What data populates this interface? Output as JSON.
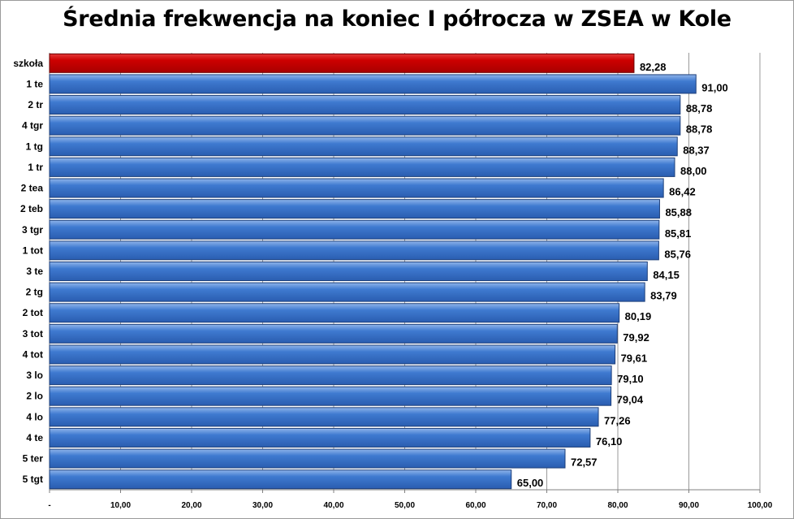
{
  "chart_data": {
    "type": "bar",
    "orientation": "horizontal",
    "title": "Średnia frekwencja na koniec I półrocza w ZSEA w Kole",
    "categories": [
      "szkoła",
      "1 te",
      "2 tr",
      "4 tgr",
      "1 tg",
      "1 tr",
      "2 tea",
      "2 teb",
      "3 tgr",
      "1 tot",
      "3 te",
      "2 tg",
      "2 tot",
      "3 tot",
      "4 tot",
      "3 lo",
      "2 lo",
      "4 lo",
      "4 te",
      "5 ter",
      "5 tgt"
    ],
    "values": [
      82.28,
      91.0,
      88.78,
      88.78,
      88.37,
      88.0,
      86.42,
      85.88,
      85.81,
      85.76,
      84.15,
      83.79,
      80.19,
      79.92,
      79.61,
      79.1,
      79.04,
      77.26,
      76.1,
      72.57,
      65.0
    ],
    "value_labels": [
      "82,28",
      "91,00",
      "88,78",
      "88,78",
      "88,37",
      "88,00",
      "86,42",
      "85,88",
      "85,81",
      "85,76",
      "84,15",
      "83,79",
      "80,19",
      "79,92",
      "79,61",
      "79,10",
      "79,04",
      "77,26",
      "76,10",
      "72,57",
      "65,00"
    ],
    "xlim": [
      0,
      100
    ],
    "x_ticks": [
      0,
      10,
      20,
      30,
      40,
      50,
      60,
      70,
      80,
      90,
      100
    ],
    "x_tick_labels": [
      "-",
      "10,00",
      "20,00",
      "30,00",
      "40,00",
      "50,00",
      "60,00",
      "70,00",
      "80,00",
      "90,00",
      "100,00"
    ],
    "grid": "vertical",
    "colors": {
      "highlight_fill": "#cc0000",
      "highlight_top": "#e33a3a",
      "bar_fill": "#3f7ad0",
      "bar_top": "#8fb4ea",
      "bar_edge": "#1d3f7a",
      "grid": "#9a9a9a"
    },
    "highlight_index": 0
  }
}
